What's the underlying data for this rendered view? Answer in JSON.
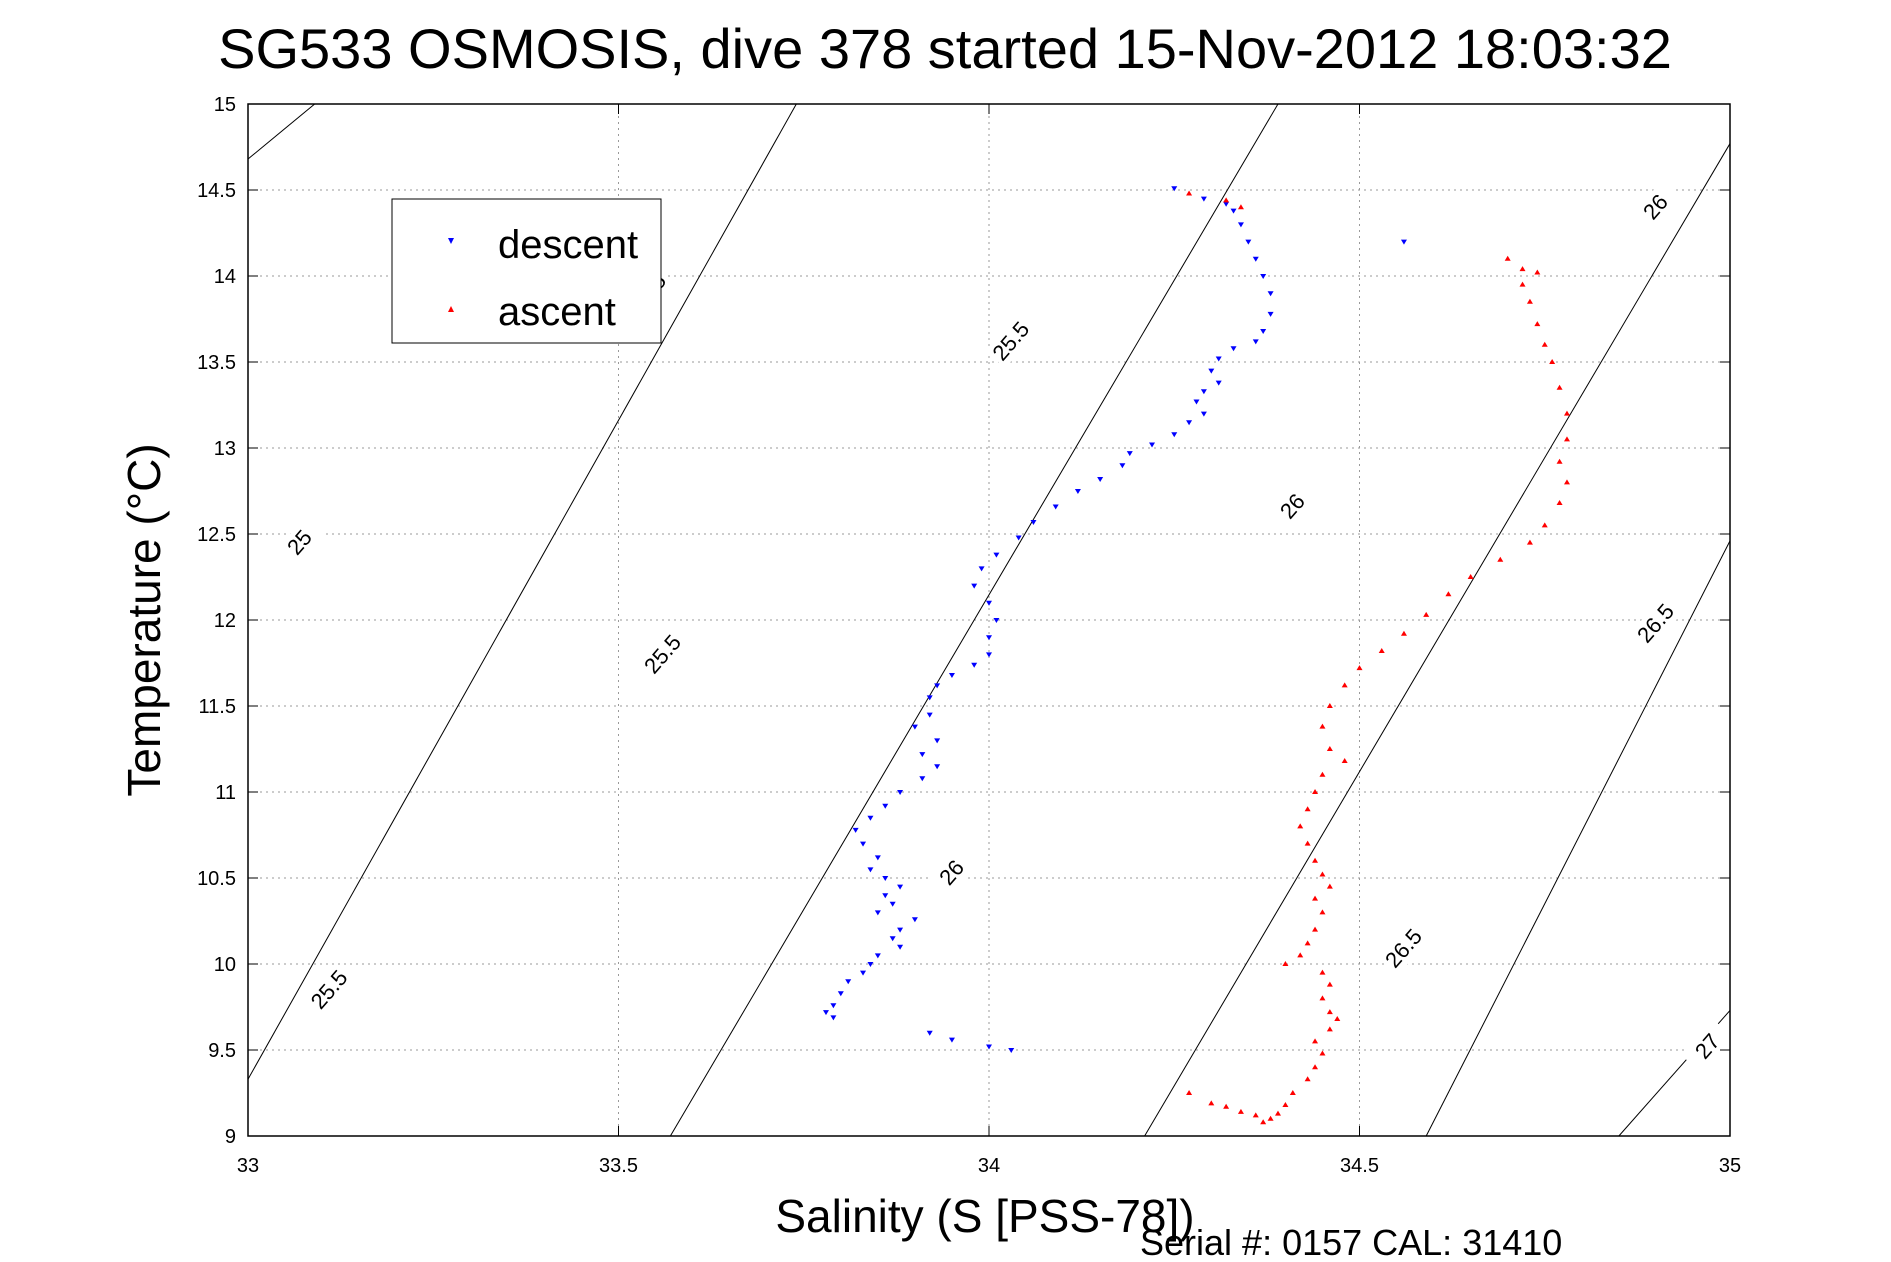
{
  "chart_data": {
    "type": "scatter",
    "title": "SG533 OSMOSIS, dive 378 started 15-Nov-2012 18:03:32",
    "xlabel": "Salinity (S [PSS-78])",
    "ylabel": "Temperature (°C)",
    "xlim": [
      33,
      35
    ],
    "ylim": [
      9,
      15
    ],
    "xticks": [
      "33",
      "33.5",
      "34",
      "34.5",
      "35"
    ],
    "yticks": [
      "9",
      "9.5",
      "10",
      "10.5",
      "11",
      "11.5",
      "12",
      "12.5",
      "13",
      "13.5",
      "14",
      "14.5",
      "15"
    ],
    "grid": true,
    "legend_position": "top-left",
    "footer": "Serial #: 0157  CAL: 31410",
    "contours": [
      {
        "level": "25",
        "segment": [
          [
            33,
            14.68
          ],
          [
            33.09,
            15
          ]
        ]
      },
      {
        "level": "25.5",
        "segment": [
          [
            33,
            9.33
          ],
          [
            33.74,
            15
          ]
        ]
      },
      {
        "level": "26",
        "segment": [
          [
            33.57,
            9
          ],
          [
            34.39,
            15
          ]
        ]
      },
      {
        "level": "26",
        "segment": [
          [
            34.21,
            9
          ],
          [
            35,
            14.77
          ]
        ]
      },
      {
        "level": "26.5",
        "segment": [
          [
            34.85,
            9
          ],
          [
            35,
            9.73
          ]
        ]
      },
      {
        "level": "27",
        "segment": [
          [
            34.59,
            9
          ],
          [
            35,
            12.46
          ]
        ]
      }
    ],
    "contour_labels": [
      {
        "text": "25",
        "x": 33.07,
        "y": 12.45
      },
      {
        "text": "25.5",
        "x": 33.54,
        "y": 13.9
      },
      {
        "text": "25.5",
        "x": 33.56,
        "y": 11.8
      },
      {
        "text": "25.5",
        "x": 33.11,
        "y": 9.85
      },
      {
        "text": "25.5",
        "x": 34.03,
        "y": 13.62
      },
      {
        "text": "26",
        "x": 34.41,
        "y": 12.66
      },
      {
        "text": "26",
        "x": 33.95,
        "y": 10.53
      },
      {
        "text": "26",
        "x": 34.9,
        "y": 14.4
      },
      {
        "text": "26.5",
        "x": 34.56,
        "y": 10.09
      },
      {
        "text": "26.5",
        "x": 34.9,
        "y": 11.98
      },
      {
        "text": "27",
        "x": 34.97,
        "y": 9.52
      }
    ],
    "series": [
      {
        "name": "descent",
        "color": "#0000ff",
        "marker": "triangle-down",
        "points": [
          [
            34.25,
            14.51
          ],
          [
            34.29,
            14.45
          ],
          [
            34.32,
            14.42
          ],
          [
            34.33,
            14.38
          ],
          [
            34.34,
            14.3
          ],
          [
            34.35,
            14.2
          ],
          [
            34.36,
            14.1
          ],
          [
            34.37,
            14.0
          ],
          [
            34.38,
            13.9
          ],
          [
            34.38,
            13.78
          ],
          [
            34.37,
            13.68
          ],
          [
            34.36,
            13.62
          ],
          [
            34.33,
            13.58
          ],
          [
            34.31,
            13.52
          ],
          [
            34.3,
            13.45
          ],
          [
            34.31,
            13.38
          ],
          [
            34.29,
            13.33
          ],
          [
            34.28,
            13.27
          ],
          [
            34.29,
            13.2
          ],
          [
            34.27,
            13.15
          ],
          [
            34.25,
            13.08
          ],
          [
            34.22,
            13.02
          ],
          [
            34.19,
            12.97
          ],
          [
            34.18,
            12.9
          ],
          [
            34.15,
            12.82
          ],
          [
            34.12,
            12.75
          ],
          [
            34.09,
            12.66
          ],
          [
            34.06,
            12.57
          ],
          [
            34.04,
            12.48
          ],
          [
            34.01,
            12.38
          ],
          [
            33.99,
            12.3
          ],
          [
            33.98,
            12.2
          ],
          [
            34.0,
            12.1
          ],
          [
            34.01,
            12.0
          ],
          [
            34.0,
            11.9
          ],
          [
            34.0,
            11.8
          ],
          [
            33.98,
            11.74
          ],
          [
            33.95,
            11.68
          ],
          [
            33.93,
            11.62
          ],
          [
            33.92,
            11.55
          ],
          [
            33.92,
            11.45
          ],
          [
            33.9,
            11.38
          ],
          [
            33.93,
            11.3
          ],
          [
            33.91,
            11.22
          ],
          [
            33.93,
            11.15
          ],
          [
            33.91,
            11.08
          ],
          [
            33.88,
            11.0
          ],
          [
            33.86,
            10.92
          ],
          [
            33.84,
            10.85
          ],
          [
            33.82,
            10.78
          ],
          [
            33.83,
            10.7
          ],
          [
            33.85,
            10.62
          ],
          [
            33.84,
            10.55
          ],
          [
            33.86,
            10.5
          ],
          [
            33.88,
            10.45
          ],
          [
            33.86,
            10.4
          ],
          [
            33.87,
            10.35
          ],
          [
            33.85,
            10.3
          ],
          [
            33.9,
            10.26
          ],
          [
            33.88,
            10.2
          ],
          [
            33.87,
            10.15
          ],
          [
            33.88,
            10.1
          ],
          [
            33.85,
            10.05
          ],
          [
            33.84,
            10.0
          ],
          [
            33.83,
            9.95
          ],
          [
            33.81,
            9.9
          ],
          [
            33.8,
            9.83
          ],
          [
            33.79,
            9.76
          ],
          [
            33.78,
            9.72
          ],
          [
            33.79,
            9.69
          ],
          [
            33.92,
            9.6
          ],
          [
            33.95,
            9.56
          ],
          [
            34.0,
            9.52
          ],
          [
            34.03,
            9.5
          ],
          [
            34.56,
            14.2
          ]
        ]
      },
      {
        "name": "ascent",
        "color": "#ff0000",
        "marker": "triangle-up",
        "points": [
          [
            34.27,
            14.48
          ],
          [
            34.32,
            14.44
          ],
          [
            34.34,
            14.4
          ],
          [
            34.7,
            14.1
          ],
          [
            34.72,
            14.04
          ],
          [
            34.74,
            14.02
          ],
          [
            34.72,
            13.95
          ],
          [
            34.73,
            13.85
          ],
          [
            34.74,
            13.72
          ],
          [
            34.75,
            13.6
          ],
          [
            34.76,
            13.5
          ],
          [
            34.77,
            13.35
          ],
          [
            34.78,
            13.2
          ],
          [
            34.78,
            13.05
          ],
          [
            34.77,
            12.92
          ],
          [
            34.78,
            12.8
          ],
          [
            34.77,
            12.68
          ],
          [
            34.75,
            12.55
          ],
          [
            34.73,
            12.45
          ],
          [
            34.69,
            12.35
          ],
          [
            34.65,
            12.25
          ],
          [
            34.62,
            12.15
          ],
          [
            34.59,
            12.03
          ],
          [
            34.56,
            11.92
          ],
          [
            34.53,
            11.82
          ],
          [
            34.5,
            11.72
          ],
          [
            34.48,
            11.62
          ],
          [
            34.46,
            11.5
          ],
          [
            34.45,
            11.38
          ],
          [
            34.46,
            11.25
          ],
          [
            34.48,
            11.18
          ],
          [
            34.45,
            11.1
          ],
          [
            34.44,
            11.0
          ],
          [
            34.43,
            10.9
          ],
          [
            34.42,
            10.8
          ],
          [
            34.43,
            10.7
          ],
          [
            34.44,
            10.6
          ],
          [
            34.45,
            10.52
          ],
          [
            34.46,
            10.45
          ],
          [
            34.44,
            10.38
          ],
          [
            34.45,
            10.3
          ],
          [
            34.44,
            10.2
          ],
          [
            34.43,
            10.12
          ],
          [
            34.42,
            10.05
          ],
          [
            34.4,
            10.0
          ],
          [
            34.45,
            9.95
          ],
          [
            34.46,
            9.88
          ],
          [
            34.45,
            9.8
          ],
          [
            34.46,
            9.72
          ],
          [
            34.47,
            9.68
          ],
          [
            34.46,
            9.62
          ],
          [
            34.44,
            9.55
          ],
          [
            34.45,
            9.48
          ],
          [
            34.44,
            9.4
          ],
          [
            34.43,
            9.33
          ],
          [
            34.41,
            9.25
          ],
          [
            34.4,
            9.18
          ],
          [
            34.39,
            9.13
          ],
          [
            34.38,
            9.1
          ],
          [
            34.37,
            9.08
          ],
          [
            34.34,
            9.14
          ],
          [
            34.32,
            9.17
          ],
          [
            34.3,
            9.19
          ],
          [
            34.27,
            9.25
          ],
          [
            34.36,
            9.12
          ]
        ]
      }
    ]
  }
}
